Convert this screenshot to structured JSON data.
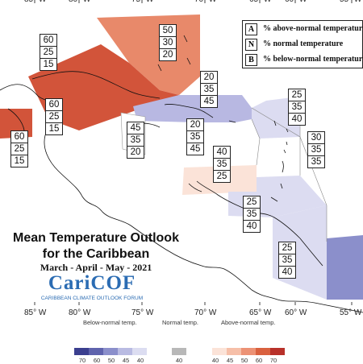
{
  "longitude_labels": [
    "85° W",
    "80° W",
    "75° W",
    "70° W",
    "65° W",
    "60° W",
    "55° W"
  ],
  "legend": {
    "rows": [
      {
        "key": "A",
        "text": "% above-normal temperature"
      },
      {
        "key": "N",
        "text": "% normal temperature"
      },
      {
        "key": "B",
        "text": "% below-normal temperature"
      }
    ]
  },
  "regions": [
    {
      "id": "bahamas",
      "above": "50",
      "normal": "30",
      "below": "20",
      "fill": "#e8896a"
    },
    {
      "id": "cuba-west",
      "above": "60",
      "normal": "25",
      "below": "15",
      "fill": "#d2543a"
    },
    {
      "id": "cuba-south",
      "above": "60",
      "normal": "25",
      "below": "15",
      "fill": "#d2543a"
    },
    {
      "id": "yucatan",
      "above": "60",
      "normal": "25",
      "below": "15",
      "fill": "#d2543a"
    },
    {
      "id": "hispaniola-north",
      "above": "20",
      "normal": "35",
      "below": "45",
      "fill": "#b8b8e2"
    },
    {
      "id": "jamaica",
      "above": "45",
      "normal": "35",
      "below": "20",
      "fill": "#ffffff"
    },
    {
      "id": "hispaniola-south",
      "above": "20",
      "normal": "35",
      "below": "45",
      "fill": "#b8b8e2"
    },
    {
      "id": "leeward-north",
      "above": "25",
      "normal": "35",
      "below": "40",
      "fill": "#dcdcf1"
    },
    {
      "id": "leeward-east",
      "above": "30",
      "normal": "35",
      "below": "35",
      "fill": "#ffffff"
    },
    {
      "id": "aruba-curacao",
      "above": "40",
      "normal": "35",
      "below": "25",
      "fill": "#fbe3d8"
    },
    {
      "id": "trinidad",
      "above": "25",
      "normal": "35",
      "below": "40",
      "fill": "#dcdcf1"
    },
    {
      "id": "guyana",
      "above": "25",
      "normal": "35",
      "below": "40",
      "fill": "#dcdcf1"
    }
  ],
  "title": {
    "line1": "Mean Temperature Outlook",
    "line2": "for the Caribbean",
    "date": "March - April - May - 2021"
  },
  "logo": {
    "word": "CariCOF",
    "sub": "CARIBBEAN CLIMATE OUTLOOK FORUM"
  },
  "scale": {
    "below_label": "Below-normal temp.",
    "normal_label": "Normal temp.",
    "above_label": "Above-normal temp.",
    "below_ticks": [
      "70",
      "60",
      "50",
      "45",
      "40"
    ],
    "normal_ticks": [
      "40"
    ],
    "above_ticks": [
      "40",
      "45",
      "50",
      "60",
      "70"
    ],
    "below_colors": [
      "#3b3f8f",
      "#5f63ad",
      "#8b8fcb",
      "#b9bbe2",
      "#dcddf1"
    ],
    "normal_color": "#b8b8b8",
    "above_colors": [
      "#fbe3d8",
      "#f6bfa8",
      "#ec9275",
      "#d9613f",
      "#b8312a"
    ]
  }
}
